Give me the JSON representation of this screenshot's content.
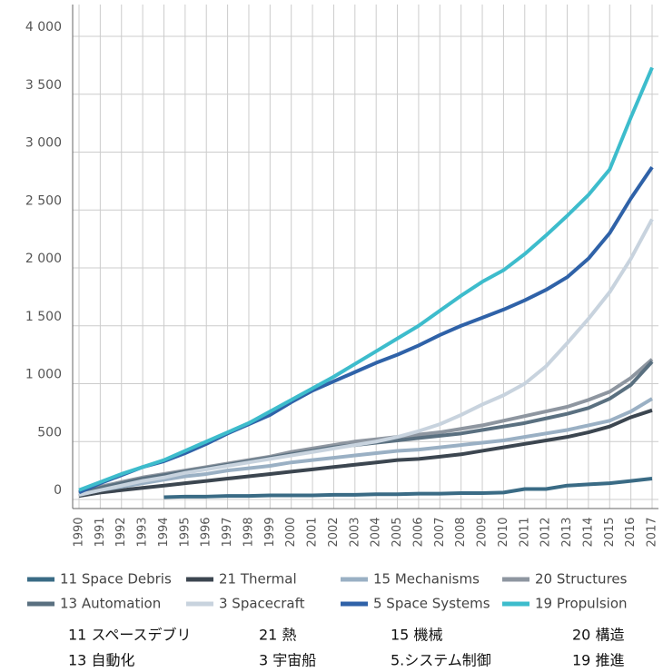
{
  "chart_data": {
    "type": "line",
    "categories": [
      "1990",
      "1991",
      "1992",
      "1993",
      "1994",
      "1995",
      "1996",
      "1997",
      "1998",
      "1999",
      "2000",
      "2001",
      "2002",
      "2003",
      "2004",
      "2005",
      "2006",
      "2007",
      "2008",
      "2009",
      "2010",
      "2011",
      "2012",
      "2013",
      "2014",
      "2015",
      "2016",
      "2017"
    ],
    "ylim": [
      0,
      4000
    ],
    "yticks": [
      0,
      500,
      {
        "value": 1000,
        "label": "1 000"
      },
      {
        "value": 1500,
        "label": "1 500"
      },
      {
        "value": 2000,
        "label": "2 000"
      },
      {
        "value": 2500,
        "label": "2 500"
      },
      {
        "value": 3000,
        "label": "3 000"
      },
      {
        "value": 3500,
        "label": "3 500"
      },
      {
        "value": 4000,
        "label": "4 000"
      }
    ],
    "grid": true,
    "series": [
      {
        "name": "11 Space Debris",
        "color": "#3a6b85",
        "values": [
          null,
          null,
          null,
          null,
          20,
          25,
          25,
          30,
          30,
          35,
          35,
          35,
          40,
          40,
          45,
          45,
          50,
          50,
          55,
          55,
          60,
          90,
          90,
          120,
          130,
          140,
          160,
          180
        ]
      },
      {
        "name": "21 Thermal",
        "color": "#3c4650",
        "values": [
          30,
          60,
          80,
          100,
          120,
          140,
          160,
          180,
          200,
          220,
          240,
          260,
          280,
          300,
          320,
          340,
          350,
          370,
          390,
          420,
          450,
          480,
          510,
          540,
          580,
          630,
          710,
          770
        ]
      },
      {
        "name": "15 Mechanisms",
        "color": "#9ab0c4",
        "values": [
          40,
          80,
          110,
          140,
          170,
          200,
          220,
          250,
          270,
          290,
          320,
          340,
          360,
          380,
          400,
          420,
          430,
          450,
          470,
          490,
          510,
          540,
          570,
          600,
          640,
          680,
          760,
          870
        ]
      },
      {
        "name": "20 Structures",
        "color": "#8e96a0",
        "values": [
          60,
          110,
          150,
          190,
          220,
          250,
          280,
          310,
          340,
          370,
          410,
          440,
          470,
          500,
          520,
          540,
          560,
          580,
          610,
          640,
          680,
          720,
          760,
          800,
          860,
          930,
          1050,
          1210
        ]
      },
      {
        "name": "13 Automation",
        "color": "#5a7080",
        "values": [
          50,
          100,
          140,
          180,
          210,
          240,
          270,
          300,
          330,
          360,
          390,
          420,
          450,
          470,
          490,
          510,
          530,
          550,
          570,
          600,
          630,
          660,
          700,
          740,
          790,
          870,
          990,
          1190
        ]
      },
      {
        "name": "3 Spacecraft",
        "color": "#c8d3de",
        "values": [
          40,
          80,
          120,
          160,
          190,
          230,
          260,
          290,
          320,
          350,
          380,
          410,
          440,
          470,
          500,
          540,
          590,
          650,
          730,
          820,
          900,
          1000,
          1150,
          1350,
          1560,
          1790,
          2080,
          2420
        ]
      },
      {
        "name": "5 Space Systems",
        "color": "#2f62a8",
        "values": [
          60,
          140,
          210,
          280,
          330,
          400,
          480,
          570,
          650,
          730,
          840,
          940,
          1020,
          1100,
          1180,
          1250,
          1330,
          1420,
          1500,
          1570,
          1640,
          1720,
          1810,
          1920,
          2080,
          2300,
          2600,
          2870
        ]
      },
      {
        "name": "19 Propulsion",
        "color": "#3dbccc",
        "values": [
          80,
          150,
          220,
          280,
          340,
          420,
          500,
          580,
          660,
          760,
          860,
          960,
          1060,
          1170,
          1280,
          1390,
          1500,
          1630,
          1760,
          1880,
          1980,
          2120,
          2280,
          2450,
          2630,
          2850,
          3300,
          3730
        ]
      }
    ]
  },
  "legend_translation": [
    "11 スペースデブリ",
    "21 熱",
    "15 機械",
    "20 構造",
    "13 自動化",
    "3 宇宙船",
    "5.システム制御",
    "19 推進"
  ]
}
